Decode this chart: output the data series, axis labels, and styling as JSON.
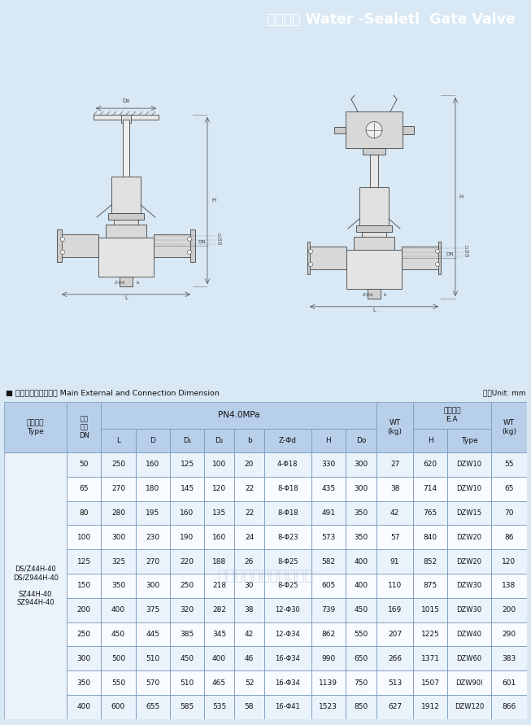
{
  "title": "水封闸阀 Water -Sealetl  Gate Valve",
  "title_bg": "#2b4ba0",
  "title_fg": "#ffffff",
  "section_label": "■ 主要外形和连接尺寸 Main External and Connection Dimension",
  "unit_label": "单位Unit: mm",
  "bg_color": "#d8e8f4",
  "header_bg": "#b8cfea",
  "data_bg1": "#eaf2fb",
  "data_bg2": "#f8fbff",
  "type_label": "DS/Z44H-40\nDS/Z944H-40\n\nSZ44H-40\nSZ944H-40",
  "pn_header": "PN4.0MPa",
  "ea_header": "选配电装\nE.A",
  "rows": [
    [
      "50",
      "250",
      "160",
      "125",
      "100",
      "20",
      "4-Φ18",
      "330",
      "300",
      "27",
      "620",
      "DZW10",
      "55"
    ],
    [
      "65",
      "270",
      "180",
      "145",
      "120",
      "22",
      "8-Φ18",
      "435",
      "300",
      "38",
      "714",
      "DZW10",
      "65"
    ],
    [
      "80",
      "280",
      "195",
      "160",
      "135",
      "22",
      "8-Φ18",
      "491",
      "350",
      "42",
      "765",
      "DZW15",
      "70"
    ],
    [
      "100",
      "300",
      "230",
      "190",
      "160",
      "24",
      "8-Φ23",
      "573",
      "350",
      "57",
      "840",
      "DZW20",
      "86"
    ],
    [
      "125",
      "325",
      "270",
      "220",
      "188",
      "26",
      "8-Φ25",
      "582",
      "400",
      "91",
      "852",
      "DZW20",
      "120"
    ],
    [
      "150",
      "350",
      "300",
      "250",
      "218",
      "30",
      "8-Φ25",
      "605",
      "400",
      "110",
      "875",
      "DZW30",
      "138"
    ],
    [
      "200",
      "400",
      "375",
      "320",
      "282",
      "38",
      "12-Φ30",
      "739",
      "450",
      "169",
      "1015",
      "DZW30",
      "200"
    ],
    [
      "250",
      "450",
      "445",
      "385",
      "345",
      "42",
      "12-Φ34",
      "862",
      "550",
      "207",
      "1225",
      "DZW40",
      "290"
    ],
    [
      "300",
      "500",
      "510",
      "450",
      "400",
      "46",
      "16-Φ34",
      "990",
      "650",
      "266",
      "1371",
      "DZW60",
      "383"
    ],
    [
      "350",
      "550",
      "570",
      "510",
      "465",
      "52",
      "16-Φ34",
      "1139",
      "750",
      "513",
      "1507",
      "DZW90I",
      "601"
    ],
    [
      "400",
      "600",
      "655",
      "585",
      "535",
      "58",
      "16-Φ41",
      "1523",
      "850",
      "627",
      "1912",
      "DZW120",
      "866"
    ]
  ],
  "line_color": "#444444",
  "watermark": "永嘉兴业通阀门有限公司"
}
